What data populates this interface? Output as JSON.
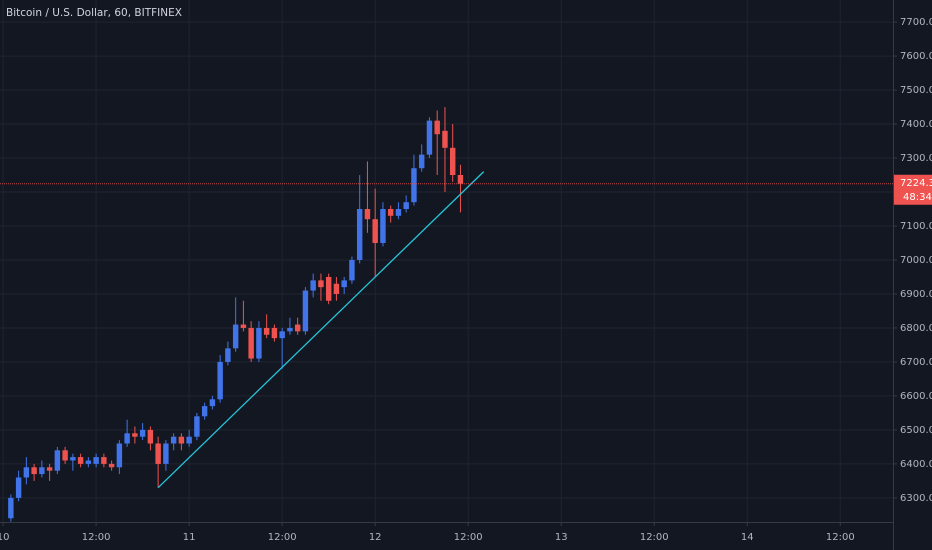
{
  "chart_data": {
    "type": "candlestick",
    "title": "Bitcoin / U.S. Dollar, 60, BITFINEX",
    "x": [
      1,
      2,
      3,
      4,
      5,
      6,
      7,
      8,
      9,
      10,
      11,
      12,
      13,
      14,
      15,
      16,
      17,
      18,
      19,
      20,
      21,
      22,
      23,
      24,
      25,
      26,
      27,
      28,
      29,
      30,
      31,
      32,
      33,
      34,
      35,
      36,
      37,
      38,
      39,
      40,
      41,
      42,
      43,
      44,
      45,
      46,
      47,
      48,
      49,
      50,
      51,
      52,
      53,
      54,
      55,
      56,
      57,
      58,
      59
    ],
    "open": [
      6240,
      6300,
      6360,
      6390,
      6370,
      6390,
      6380,
      6440,
      6410,
      6420,
      6400,
      6400,
      6420,
      6400,
      6390,
      6460,
      6490,
      6480,
      6500,
      6460,
      6400,
      6460,
      6480,
      6460,
      6480,
      6540,
      6570,
      6590,
      6700,
      6740,
      6810,
      6800,
      6710,
      6800,
      6800,
      6770,
      6790,
      6810,
      6790,
      6910,
      6940,
      6950,
      6930,
      6920,
      6940,
      7000,
      7150,
      7120,
      7050,
      7150,
      7130,
      7150,
      7170,
      7270,
      7310,
      7410,
      7380,
      7330,
      7250
    ],
    "high": [
      6310,
      6380,
      6420,
      6400,
      6410,
      6400,
      6450,
      6450,
      6430,
      6430,
      6420,
      6430,
      6430,
      6410,
      6470,
      6530,
      6510,
      6520,
      6510,
      6480,
      6470,
      6490,
      6490,
      6500,
      6550,
      6580,
      6600,
      6720,
      6760,
      6890,
      6880,
      6820,
      6820,
      6840,
      6810,
      6800,
      6830,
      6830,
      6920,
      6960,
      6960,
      6960,
      6950,
      6950,
      7010,
      7250,
      7290,
      7210,
      7170,
      7160,
      7170,
      7190,
      7310,
      7340,
      7420,
      7440,
      7450,
      7400,
      7280
    ],
    "low": [
      6230,
      6290,
      6340,
      6350,
      6360,
      6350,
      6370,
      6400,
      6380,
      6390,
      6390,
      6390,
      6390,
      6380,
      6370,
      6450,
      6460,
      6470,
      6440,
      6330,
      6380,
      6440,
      6440,
      6450,
      6470,
      6530,
      6560,
      6580,
      6690,
      6730,
      6790,
      6700,
      6700,
      6770,
      6760,
      6680,
      6780,
      6780,
      6780,
      6890,
      6880,
      6870,
      6880,
      6900,
      6930,
      6990,
      7080,
      6950,
      7040,
      7110,
      7120,
      7140,
      7160,
      7260,
      7300,
      7250,
      7200,
      7230,
      7140
    ],
    "close": [
      6300,
      6360,
      6390,
      6370,
      6390,
      6380,
      6440,
      6410,
      6420,
      6400,
      6410,
      6420,
      6400,
      6390,
      6460,
      6490,
      6480,
      6500,
      6460,
      6400,
      6460,
      6480,
      6460,
      6480,
      6540,
      6570,
      6590,
      6700,
      6740,
      6810,
      6800,
      6710,
      6800,
      6780,
      6770,
      6790,
      6800,
      6790,
      6910,
      6940,
      6920,
      6880,
      6900,
      6940,
      7000,
      7150,
      7120,
      7050,
      7150,
      7130,
      7150,
      7170,
      7270,
      7310,
      7410,
      7370,
      7330,
      7250,
      7224.3
    ],
    "up_color": "#4174e8",
    "down_color": "#ef5350",
    "countdown": "48:34",
    "trendline": {
      "x": [
        20,
        62
      ],
      "y": [
        6330,
        7260
      ],
      "color": "#26c6da"
    },
    "xlim": [
      -0.4,
      114.8
    ],
    "xticks": [
      {
        "value": 0,
        "label": "10"
      },
      {
        "value": 12,
        "label": "12:00"
      },
      {
        "value": 24,
        "label": "11"
      },
      {
        "value": 36,
        "label": "12:00"
      },
      {
        "value": 48,
        "label": "12"
      },
      {
        "value": 60,
        "label": "12:00"
      },
      {
        "value": 72,
        "label": "13"
      },
      {
        "value": 84,
        "label": "12:00"
      },
      {
        "value": 96,
        "label": "14"
      },
      {
        "value": 108,
        "label": "12:00"
      }
    ],
    "ylim": [
      6229,
      7765
    ],
    "yticks": [
      {
        "value": 6300,
        "label": "6300.0"
      },
      {
        "value": 6400,
        "label": "6400.0"
      },
      {
        "value": 6500,
        "label": "6500.0"
      },
      {
        "value": 6600,
        "label": "6600.0"
      },
      {
        "value": 6700,
        "label": "6700.0"
      },
      {
        "value": 6800,
        "label": "6800.0"
      },
      {
        "value": 6900,
        "label": "6900.0"
      },
      {
        "value": 7000,
        "label": "7000.0"
      },
      {
        "value": 7100,
        "label": "7100.0"
      },
      {
        "value": 7200,
        "label": "7200.0"
      },
      {
        "value": 7300,
        "label": "7300.0"
      },
      {
        "value": 7400,
        "label": "7400.0"
      },
      {
        "value": 7500,
        "label": "7500.0"
      },
      {
        "value": 7600,
        "label": "7600.0"
      },
      {
        "value": 7700,
        "label": "7700.0"
      }
    ],
    "grid": true
  }
}
